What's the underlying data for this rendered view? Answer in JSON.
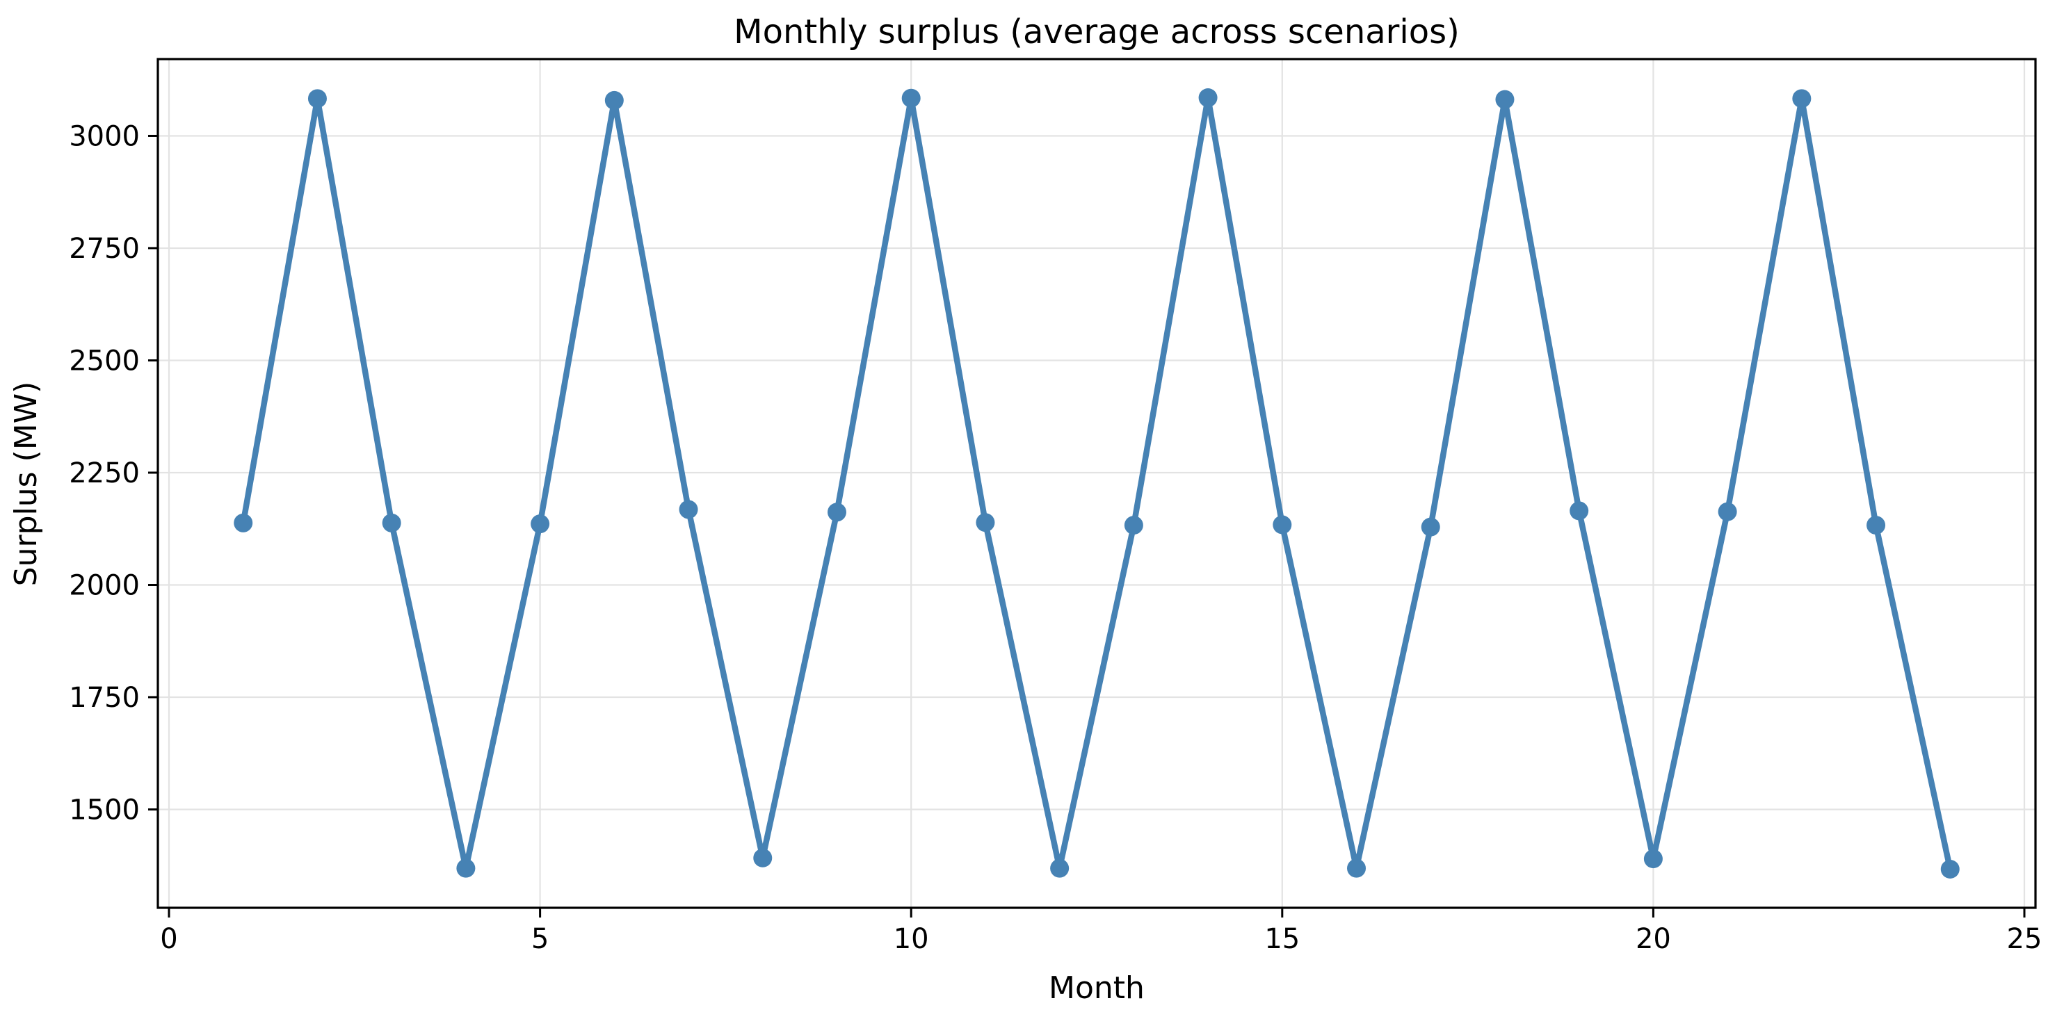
{
  "figure": {
    "background": "#ffffff"
  },
  "chart_data": {
    "type": "line",
    "title": "Monthly surplus (average across scenarios)",
    "xlabel": "Month",
    "ylabel": "Surplus (MW)",
    "series": [
      {
        "name": "monthly-surplus",
        "x": [
          1,
          2,
          3,
          4,
          5,
          6,
          7,
          8,
          9,
          10,
          11,
          12,
          13,
          14,
          15,
          16,
          17,
          18,
          19,
          20,
          21,
          22,
          23,
          24
        ],
        "y": [
          2138,
          3083,
          2138,
          1369,
          2136,
          3079,
          2168,
          1392,
          2162,
          3084,
          2139,
          1369,
          2133,
          3085,
          2134,
          1369,
          2129,
          3081,
          2165,
          1390,
          2163,
          3083,
          2133,
          1367
        ]
      }
    ],
    "line_color": "#4682B4",
    "marker": "circle",
    "marker_radius": 13.5,
    "line_width": 8.5,
    "xlim": [
      -0.15,
      25.15
    ],
    "ylim": [
      1281,
      3171
    ],
    "xticks": [
      0,
      5,
      10,
      15,
      20,
      25
    ],
    "xtick_labels": [
      "0",
      "5",
      "10",
      "15",
      "20",
      "25"
    ],
    "yticks": [
      1500,
      1750,
      2000,
      2250,
      2500,
      2750,
      3000
    ],
    "ytick_labels": [
      "1500",
      "1750",
      "2000",
      "2250",
      "2500",
      "2750",
      "3000"
    ],
    "grid": true,
    "grid_color": "#e3e3e3",
    "spine_color": "#000000",
    "tick_color": "#000000",
    "legend": "none"
  }
}
